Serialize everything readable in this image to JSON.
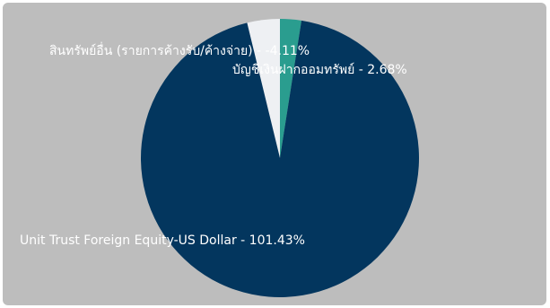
{
  "chart_data": {
    "type": "pie",
    "title": "",
    "slices": [
      {
        "label": "Unit Trust Foreign Equity-US Dollar - 101.43%",
        "value": 101.43,
        "color": "#03365e"
      },
      {
        "label": "สินทรัพย์อื่น (รายการค้างรับ/ค้างจ่าย) - -4.11%",
        "value": -4.11,
        "color": "#eef0f3"
      },
      {
        "label": "บัญชีเงินฝากออมทรัพย์ - 2.68%",
        "value": 2.68,
        "color": "#2a9d8f"
      }
    ],
    "background": "#bdbdbd",
    "legend": "none"
  }
}
